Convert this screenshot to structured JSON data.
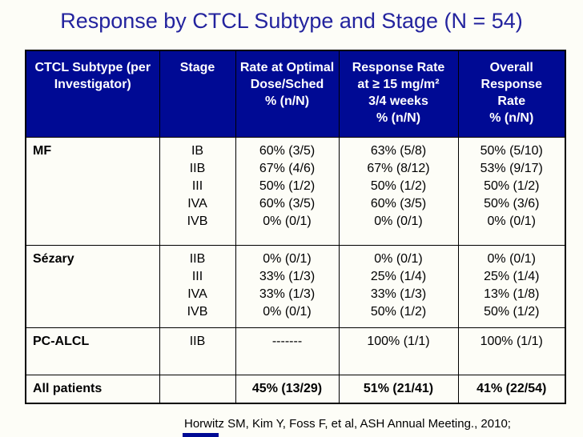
{
  "title": "Response by CTCL Subtype and Stage (N = 54)",
  "citation": "Horwitz SM, Kim Y, Foss F, et al, ASH Annual Meeting., 2010;",
  "colors": {
    "header_bg": "#000a94",
    "header_text": "#ffffff",
    "title_text": "#23239e",
    "border": "#000000",
    "body_text": "#000000",
    "background": "#fdfdf7"
  },
  "table": {
    "header": [
      {
        "lines": [
          "CTCL Subtype (per",
          "Investigator)"
        ]
      },
      {
        "lines": [
          "Stage"
        ]
      },
      {
        "lines": [
          "Rate at Optimal",
          "Dose/Sched",
          "% (n/N)"
        ]
      },
      {
        "lines": [
          "Response Rate",
          "at ≥ 15 mg/m²",
          "3/4 weeks",
          "% (n/N)"
        ]
      },
      {
        "lines": [
          "Overall",
          "Response",
          "Rate",
          "% (n/N)"
        ]
      }
    ],
    "groups": [
      {
        "subtype": "MF",
        "stages": [
          "IB",
          "IIB",
          "III",
          "IVA",
          "IVB"
        ],
        "rate_optimal": [
          "60% (3/5)",
          "67% (4/6)",
          "50% (1/2)",
          "60% (3/5)",
          "0% (0/1)"
        ],
        "rate_ge15": [
          "63% (5/8)",
          "67% (8/12)",
          "50% (1/2)",
          "60% (3/5)",
          "0% (0/1)"
        ],
        "overall": [
          "50% (5/10)",
          "53% (9/17)",
          "50% (1/2)",
          "50% (3/6)",
          "0% (0/1)"
        ]
      },
      {
        "subtype": "Sézary",
        "stages": [
          "IIB",
          "III",
          "IVA",
          "IVB"
        ],
        "rate_optimal": [
          "0% (0/1)",
          "33% (1/3)",
          "33% (1/3)",
          "0% (0/1)"
        ],
        "rate_ge15": [
          "0% (0/1)",
          "25% (1/4)",
          "33% (1/3)",
          "50% (1/2)"
        ],
        "overall": [
          "0% (0/1)",
          "25% (1/4)",
          "13% (1/8)",
          "50% (1/2)"
        ]
      },
      {
        "subtype": "PC-ALCL",
        "stages": [
          "IIB"
        ],
        "rate_optimal": [
          "-------"
        ],
        "rate_ge15": [
          "100% (1/1)"
        ],
        "overall": [
          "100% (1/1)"
        ]
      }
    ],
    "totals": {
      "label": "All patients",
      "stage": "",
      "rate_optimal": "45% (13/29)",
      "rate_ge15": "51% (21/41)",
      "overall": "41% (22/54)"
    }
  }
}
